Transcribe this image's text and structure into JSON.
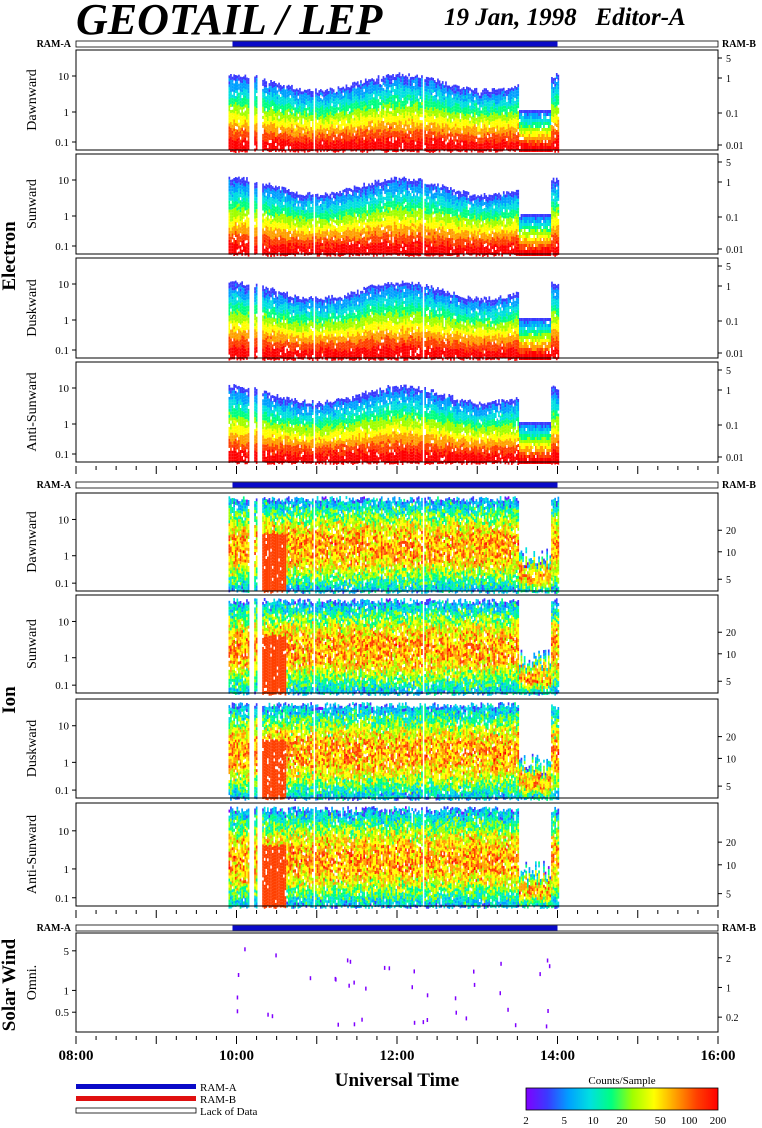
{
  "header": {
    "title": "GEOTAIL / LEP",
    "date": "19 Jan, 1998",
    "editor": "Editor-A"
  },
  "ram_labels": {
    "a": "RAM-A",
    "b": "RAM-B"
  },
  "groups": [
    {
      "name": "Electron",
      "panels": [
        "Dawnward",
        "Sunward",
        "Duskward",
        "Anti-Sunward"
      ],
      "left_ticks": [
        "0.1",
        "1",
        "10"
      ],
      "right_ticks": [
        "0.01",
        "0.1",
        "1",
        "5"
      ]
    },
    {
      "name": "Ion",
      "panels": [
        "Dawnward",
        "Sunward",
        "Duskward",
        "Anti-Sunward"
      ],
      "left_ticks": [
        "0.1",
        "1",
        "10"
      ],
      "right_ticks": [
        "5",
        "10",
        "20"
      ]
    },
    {
      "name": "Solar Wind",
      "panels": [
        "Omni."
      ],
      "left_ticks": [
        "0.5",
        "1",
        "5"
      ],
      "right_ticks": [
        "0.2",
        "1",
        "2"
      ]
    }
  ],
  "x_axis": {
    "label": "Universal Time",
    "ticks": [
      "08:00",
      "10:00",
      "12:00",
      "14:00",
      "16:00"
    ]
  },
  "legend": {
    "ram_a": "RAM-A",
    "ram_b": "RAM-B",
    "lack": "Lack of Data",
    "colorbar_title": "Counts/Sample",
    "colorbar_ticks": [
      "2",
      "5",
      "10",
      "20",
      "50",
      "100",
      "200"
    ]
  },
  "colors": {
    "ram_a": "#0a0ac8",
    "ram_b": "#e01010",
    "colorbar": [
      "#8000ff",
      "#3a3aff",
      "#00a0ff",
      "#00e0e0",
      "#00ff80",
      "#a0ff00",
      "#ffff00",
      "#ffa000",
      "#ff4000",
      "#ff0000"
    ]
  },
  "chart_data": {
    "type": "heatmap",
    "x_range_hours": [
      8,
      16
    ],
    "data_coverage_hours": [
      9.9,
      14.0
    ],
    "ram_a_coverage_hours": [
      9.95,
      14.0
    ],
    "description_units": {
      "colorbar": "Counts/Sample",
      "colorbar_range": [
        2,
        200
      ]
    },
    "panels": [
      {
        "group": "Electron",
        "name": "Dawnward",
        "y_left_range": [
          0.1,
          30
        ],
        "y_right_range": [
          0.01,
          5
        ]
      },
      {
        "group": "Electron",
        "name": "Sunward",
        "y_left_range": [
          0.1,
          30
        ],
        "y_right_range": [
          0.01,
          5
        ]
      },
      {
        "group": "Electron",
        "name": "Duskward",
        "y_left_range": [
          0.1,
          30
        ],
        "y_right_range": [
          0.01,
          5
        ]
      },
      {
        "group": "Electron",
        "name": "Anti-Sunward",
        "y_left_range": [
          0.1,
          30
        ],
        "y_right_range": [
          0.01,
          5
        ]
      },
      {
        "group": "Ion",
        "name": "Dawnward",
        "y_left_range": [
          0.1,
          30
        ],
        "y_right_range": [
          5,
          30
        ]
      },
      {
        "group": "Ion",
        "name": "Sunward",
        "y_left_range": [
          0.1,
          30
        ],
        "y_right_range": [
          5,
          30
        ]
      },
      {
        "group": "Ion",
        "name": "Duskward",
        "y_left_range": [
          0.1,
          30
        ],
        "y_right_range": [
          5,
          30
        ]
      },
      {
        "group": "Ion",
        "name": "Anti-Sunward",
        "y_left_range": [
          0.1,
          30
        ],
        "y_right_range": [
          5,
          30
        ]
      },
      {
        "group": "Solar Wind",
        "name": "Omni.",
        "y_left_range": [
          0.2,
          10
        ],
        "y_right_range": [
          0.15,
          3
        ]
      }
    ]
  }
}
